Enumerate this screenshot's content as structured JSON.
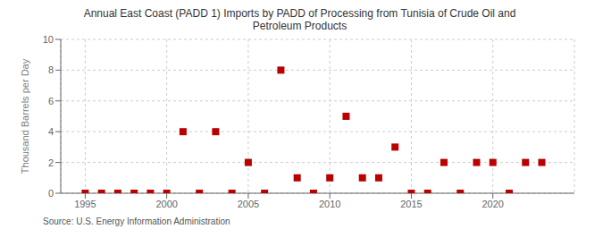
{
  "chart_data": {
    "type": "scatter",
    "title": "Annual East Coast (PADD 1) Imports by PADD of Processing from Tunisia of Crude Oil and\nPetroleum Products",
    "ylabel": "Thousand Barrels per Day",
    "annotations": [
      "Source: U.S. Energy Information Administration"
    ],
    "x": [
      1995,
      1996,
      1997,
      1998,
      1999,
      2000,
      2001,
      2002,
      2003,
      2004,
      2005,
      2006,
      2007,
      2008,
      2009,
      2010,
      2011,
      2012,
      2013,
      2014,
      2015,
      2016,
      2017,
      2018,
      2019,
      2020,
      2021,
      2022,
      2023
    ],
    "values": [
      0,
      0,
      0,
      0,
      0,
      0,
      4,
      0,
      4,
      0,
      2,
      0,
      8,
      1,
      0,
      1,
      5,
      1,
      1,
      3,
      0,
      0,
      2,
      0,
      2,
      2,
      0,
      2,
      2
    ],
    "color": "#bb0000",
    "marker": "square",
    "xlim": [
      1993.5,
      2025
    ],
    "xticks": [
      1995,
      2000,
      2005,
      2010,
      2015,
      2020
    ],
    "ylim": [
      0,
      10
    ],
    "yticks": [
      0,
      2,
      4,
      6,
      8,
      10
    ],
    "grid": true
  }
}
